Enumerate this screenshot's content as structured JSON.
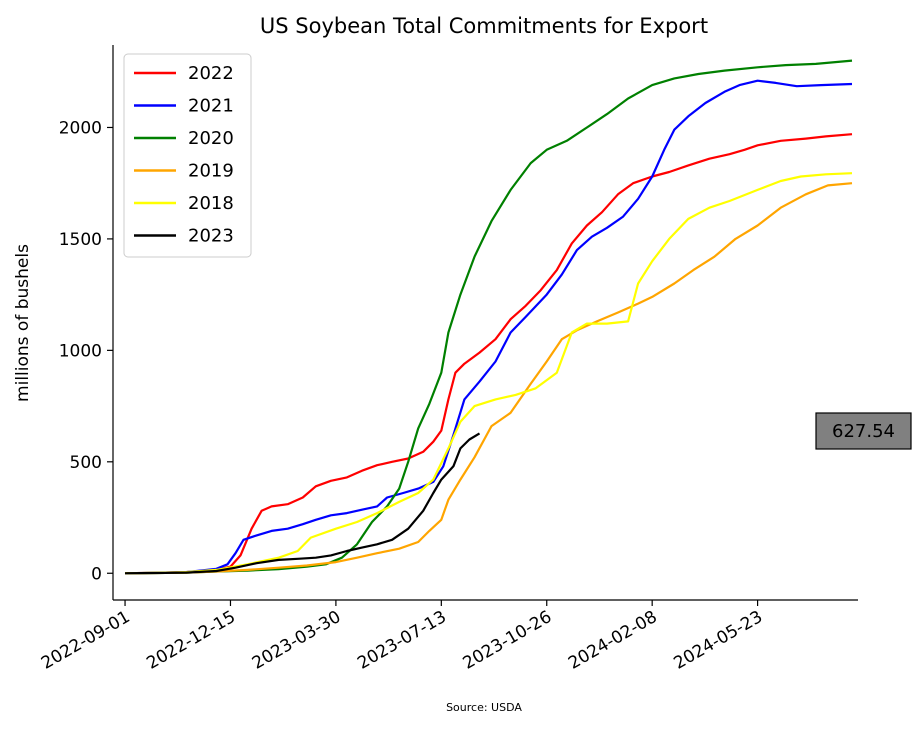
{
  "chart_data": {
    "type": "line",
    "title": "US Soybean Total Commitments for Export",
    "xlabel": "",
    "ylabel": "millions of bushels",
    "source": "Source: USDA",
    "x_ticks": [
      "2022-09-01",
      "2022-12-15",
      "2023-03-30",
      "2023-07-13",
      "2023-10-26",
      "2024-02-08",
      "2024-05-23"
    ],
    "xlim": [
      "2022-08-20",
      "2024-08-31"
    ],
    "y_ticks": [
      0,
      500,
      1000,
      1500,
      2000
    ],
    "ylim": [
      -120,
      2370
    ],
    "grid": false,
    "legend_position": "upper-left",
    "callout": {
      "value": "627.54",
      "color": "#808080"
    },
    "series": [
      {
        "name": "2022",
        "color": "#ff0000",
        "points": [
          [
            "2022-09-01",
            0
          ],
          [
            "2022-10-01",
            2
          ],
          [
            "2022-11-01",
            5
          ],
          [
            "2022-12-01",
            15
          ],
          [
            "2022-12-15",
            30
          ],
          [
            "2022-12-25",
            80
          ],
          [
            "2023-01-05",
            200
          ],
          [
            "2023-01-15",
            280
          ],
          [
            "2023-01-25",
            300
          ],
          [
            "2023-02-10",
            310
          ],
          [
            "2023-02-25",
            340
          ],
          [
            "2023-03-10",
            390
          ],
          [
            "2023-03-25",
            415
          ],
          [
            "2023-04-10",
            430
          ],
          [
            "2023-04-25",
            460
          ],
          [
            "2023-05-10",
            485
          ],
          [
            "2023-05-25",
            500
          ],
          [
            "2023-06-10",
            515
          ],
          [
            "2023-06-25",
            545
          ],
          [
            "2023-07-05",
            590
          ],
          [
            "2023-07-13",
            640
          ],
          [
            "2023-07-20",
            780
          ],
          [
            "2023-07-27",
            900
          ],
          [
            "2023-08-05",
            940
          ],
          [
            "2023-08-20",
            990
          ],
          [
            "2023-09-05",
            1050
          ],
          [
            "2023-09-20",
            1140
          ],
          [
            "2023-10-05",
            1200
          ],
          [
            "2023-10-20",
            1270
          ],
          [
            "2023-11-05",
            1360
          ],
          [
            "2023-11-20",
            1480
          ],
          [
            "2023-12-05",
            1560
          ],
          [
            "2023-12-20",
            1620
          ],
          [
            "2024-01-05",
            1700
          ],
          [
            "2024-01-20",
            1750
          ],
          [
            "2024-02-08",
            1780
          ],
          [
            "2024-02-25",
            1800
          ],
          [
            "2024-03-15",
            1830
          ],
          [
            "2024-04-05",
            1860
          ],
          [
            "2024-04-25",
            1880
          ],
          [
            "2024-05-10",
            1900
          ],
          [
            "2024-05-23",
            1920
          ],
          [
            "2024-06-15",
            1940
          ],
          [
            "2024-07-10",
            1950
          ],
          [
            "2024-07-30",
            1960
          ],
          [
            "2024-08-25",
            1970
          ]
        ]
      },
      {
        "name": "2021",
        "color": "#0000ff",
        "points": [
          [
            "2022-09-01",
            0
          ],
          [
            "2022-10-01",
            2
          ],
          [
            "2022-11-01",
            5
          ],
          [
            "2022-12-01",
            20
          ],
          [
            "2022-12-12",
            40
          ],
          [
            "2022-12-20",
            90
          ],
          [
            "2022-12-28",
            150
          ],
          [
            "2023-01-10",
            170
          ],
          [
            "2023-01-25",
            190
          ],
          [
            "2023-02-10",
            200
          ],
          [
            "2023-02-25",
            220
          ],
          [
            "2023-03-10",
            240
          ],
          [
            "2023-03-25",
            260
          ],
          [
            "2023-04-10",
            270
          ],
          [
            "2023-04-25",
            285
          ],
          [
            "2023-05-10",
            300
          ],
          [
            "2023-05-20",
            340
          ],
          [
            "2023-06-05",
            360
          ],
          [
            "2023-06-20",
            380
          ],
          [
            "2023-07-05",
            410
          ],
          [
            "2023-07-15",
            480
          ],
          [
            "2023-07-25",
            620
          ],
          [
            "2023-08-05",
            780
          ],
          [
            "2023-08-20",
            860
          ],
          [
            "2023-09-05",
            950
          ],
          [
            "2023-09-20",
            1080
          ],
          [
            "2023-10-05",
            1150
          ],
          [
            "2023-10-26",
            1250
          ],
          [
            "2023-11-10",
            1340
          ],
          [
            "2023-11-25",
            1450
          ],
          [
            "2023-12-10",
            1510
          ],
          [
            "2023-12-25",
            1550
          ],
          [
            "2024-01-10",
            1600
          ],
          [
            "2024-01-25",
            1680
          ],
          [
            "2024-02-08",
            1780
          ],
          [
            "2024-02-20",
            1900
          ],
          [
            "2024-03-01",
            1990
          ],
          [
            "2024-03-15",
            2050
          ],
          [
            "2024-04-01",
            2110
          ],
          [
            "2024-04-20",
            2160
          ],
          [
            "2024-05-05",
            2190
          ],
          [
            "2024-05-23",
            2210
          ],
          [
            "2024-06-10",
            2200
          ],
          [
            "2024-07-01",
            2185
          ],
          [
            "2024-07-25",
            2190
          ],
          [
            "2024-08-25",
            2195
          ]
        ]
      },
      {
        "name": "2020",
        "color": "#008000",
        "points": [
          [
            "2022-09-01",
            0
          ],
          [
            "2022-10-01",
            1
          ],
          [
            "2022-11-01",
            3
          ],
          [
            "2022-12-01",
            8
          ],
          [
            "2023-01-01",
            12
          ],
          [
            "2023-02-01",
            18
          ],
          [
            "2023-03-01",
            30
          ],
          [
            "2023-03-20",
            40
          ],
          [
            "2023-04-05",
            70
          ],
          [
            "2023-04-20",
            130
          ],
          [
            "2023-05-05",
            230
          ],
          [
            "2023-05-20",
            300
          ],
          [
            "2023-06-01",
            380
          ],
          [
            "2023-06-10",
            500
          ],
          [
            "2023-06-20",
            650
          ],
          [
            "2023-07-01",
            760
          ],
          [
            "2023-07-13",
            900
          ],
          [
            "2023-07-20",
            1080
          ],
          [
            "2023-08-01",
            1250
          ],
          [
            "2023-08-15",
            1420
          ],
          [
            "2023-09-01",
            1580
          ],
          [
            "2023-09-20",
            1720
          ],
          [
            "2023-10-10",
            1840
          ],
          [
            "2023-10-26",
            1900
          ],
          [
            "2023-11-15",
            1940
          ],
          [
            "2023-12-05",
            2000
          ],
          [
            "2023-12-25",
            2060
          ],
          [
            "2024-01-15",
            2130
          ],
          [
            "2024-02-08",
            2190
          ],
          [
            "2024-03-01",
            2220
          ],
          [
            "2024-03-25",
            2240
          ],
          [
            "2024-04-20",
            2255
          ],
          [
            "2024-05-23",
            2270
          ],
          [
            "2024-06-20",
            2280
          ],
          [
            "2024-07-20",
            2285
          ],
          [
            "2024-08-25",
            2300
          ]
        ]
      },
      {
        "name": "2019",
        "color": "#ffa500",
        "points": [
          [
            "2022-09-01",
            0
          ],
          [
            "2022-10-01",
            1
          ],
          [
            "2022-11-01",
            3
          ],
          [
            "2022-12-01",
            8
          ],
          [
            "2023-01-01",
            15
          ],
          [
            "2023-02-01",
            25
          ],
          [
            "2023-03-01",
            35
          ],
          [
            "2023-03-30",
            50
          ],
          [
            "2023-04-20",
            70
          ],
          [
            "2023-05-10",
            90
          ],
          [
            "2023-06-01",
            110
          ],
          [
            "2023-06-20",
            140
          ],
          [
            "2023-07-01",
            190
          ],
          [
            "2023-07-13",
            240
          ],
          [
            "2023-07-20",
            330
          ],
          [
            "2023-08-01",
            420
          ],
          [
            "2023-08-15",
            520
          ],
          [
            "2023-09-01",
            660
          ],
          [
            "2023-09-20",
            720
          ],
          [
            "2023-10-10",
            850
          ],
          [
            "2023-10-26",
            950
          ],
          [
            "2023-11-10",
            1050
          ],
          [
            "2023-11-25",
            1090
          ],
          [
            "2023-12-15",
            1130
          ],
          [
            "2024-01-05",
            1170
          ],
          [
            "2024-01-25",
            1210
          ],
          [
            "2024-02-08",
            1240
          ],
          [
            "2024-03-01",
            1300
          ],
          [
            "2024-03-20",
            1360
          ],
          [
            "2024-04-10",
            1420
          ],
          [
            "2024-05-01",
            1500
          ],
          [
            "2024-05-23",
            1560
          ],
          [
            "2024-06-15",
            1640
          ],
          [
            "2024-07-10",
            1700
          ],
          [
            "2024-08-01",
            1740
          ],
          [
            "2024-08-25",
            1750
          ]
        ]
      },
      {
        "name": "2018",
        "color": "#ffff00",
        "points": [
          [
            "2022-09-01",
            0
          ],
          [
            "2022-10-01",
            2
          ],
          [
            "2022-11-01",
            5
          ],
          [
            "2022-12-01",
            15
          ],
          [
            "2023-01-01",
            40
          ],
          [
            "2023-02-01",
            70
          ],
          [
            "2023-02-20",
            100
          ],
          [
            "2023-03-05",
            160
          ],
          [
            "2023-03-30",
            200
          ],
          [
            "2023-04-20",
            230
          ],
          [
            "2023-05-10",
            270
          ],
          [
            "2023-06-01",
            320
          ],
          [
            "2023-06-20",
            360
          ],
          [
            "2023-07-05",
            420
          ],
          [
            "2023-07-20",
            560
          ],
          [
            "2023-08-01",
            680
          ],
          [
            "2023-08-15",
            750
          ],
          [
            "2023-09-05",
            780
          ],
          [
            "2023-09-25",
            800
          ],
          [
            "2023-10-15",
            830
          ],
          [
            "2023-11-05",
            900
          ],
          [
            "2023-11-20",
            1080
          ],
          [
            "2023-12-05",
            1120
          ],
          [
            "2023-12-25",
            1120
          ],
          [
            "2024-01-15",
            1130
          ],
          [
            "2024-01-25",
            1300
          ],
          [
            "2024-02-08",
            1400
          ],
          [
            "2024-02-25",
            1500
          ],
          [
            "2024-03-15",
            1590
          ],
          [
            "2024-04-05",
            1640
          ],
          [
            "2024-04-25",
            1670
          ],
          [
            "2024-05-23",
            1720
          ],
          [
            "2024-06-15",
            1760
          ],
          [
            "2024-07-05",
            1780
          ],
          [
            "2024-07-30",
            1790
          ],
          [
            "2024-08-25",
            1795
          ]
        ]
      },
      {
        "name": "2023",
        "color": "#000000",
        "points": [
          [
            "2022-09-01",
            0
          ],
          [
            "2022-10-01",
            1
          ],
          [
            "2022-11-01",
            3
          ],
          [
            "2022-12-01",
            10
          ],
          [
            "2022-12-20",
            25
          ],
          [
            "2023-01-10",
            45
          ],
          [
            "2023-02-01",
            60
          ],
          [
            "2023-02-20",
            65
          ],
          [
            "2023-03-10",
            70
          ],
          [
            "2023-03-25",
            80
          ],
          [
            "2023-04-10",
            100
          ],
          [
            "2023-04-25",
            115
          ],
          [
            "2023-05-10",
            130
          ],
          [
            "2023-05-25",
            150
          ],
          [
            "2023-06-10",
            200
          ],
          [
            "2023-06-25",
            280
          ],
          [
            "2023-07-05",
            360
          ],
          [
            "2023-07-13",
            420
          ],
          [
            "2023-07-25",
            480
          ],
          [
            "2023-08-01",
            560
          ],
          [
            "2023-08-10",
            600
          ],
          [
            "2023-08-20",
            627.54
          ]
        ]
      }
    ]
  }
}
